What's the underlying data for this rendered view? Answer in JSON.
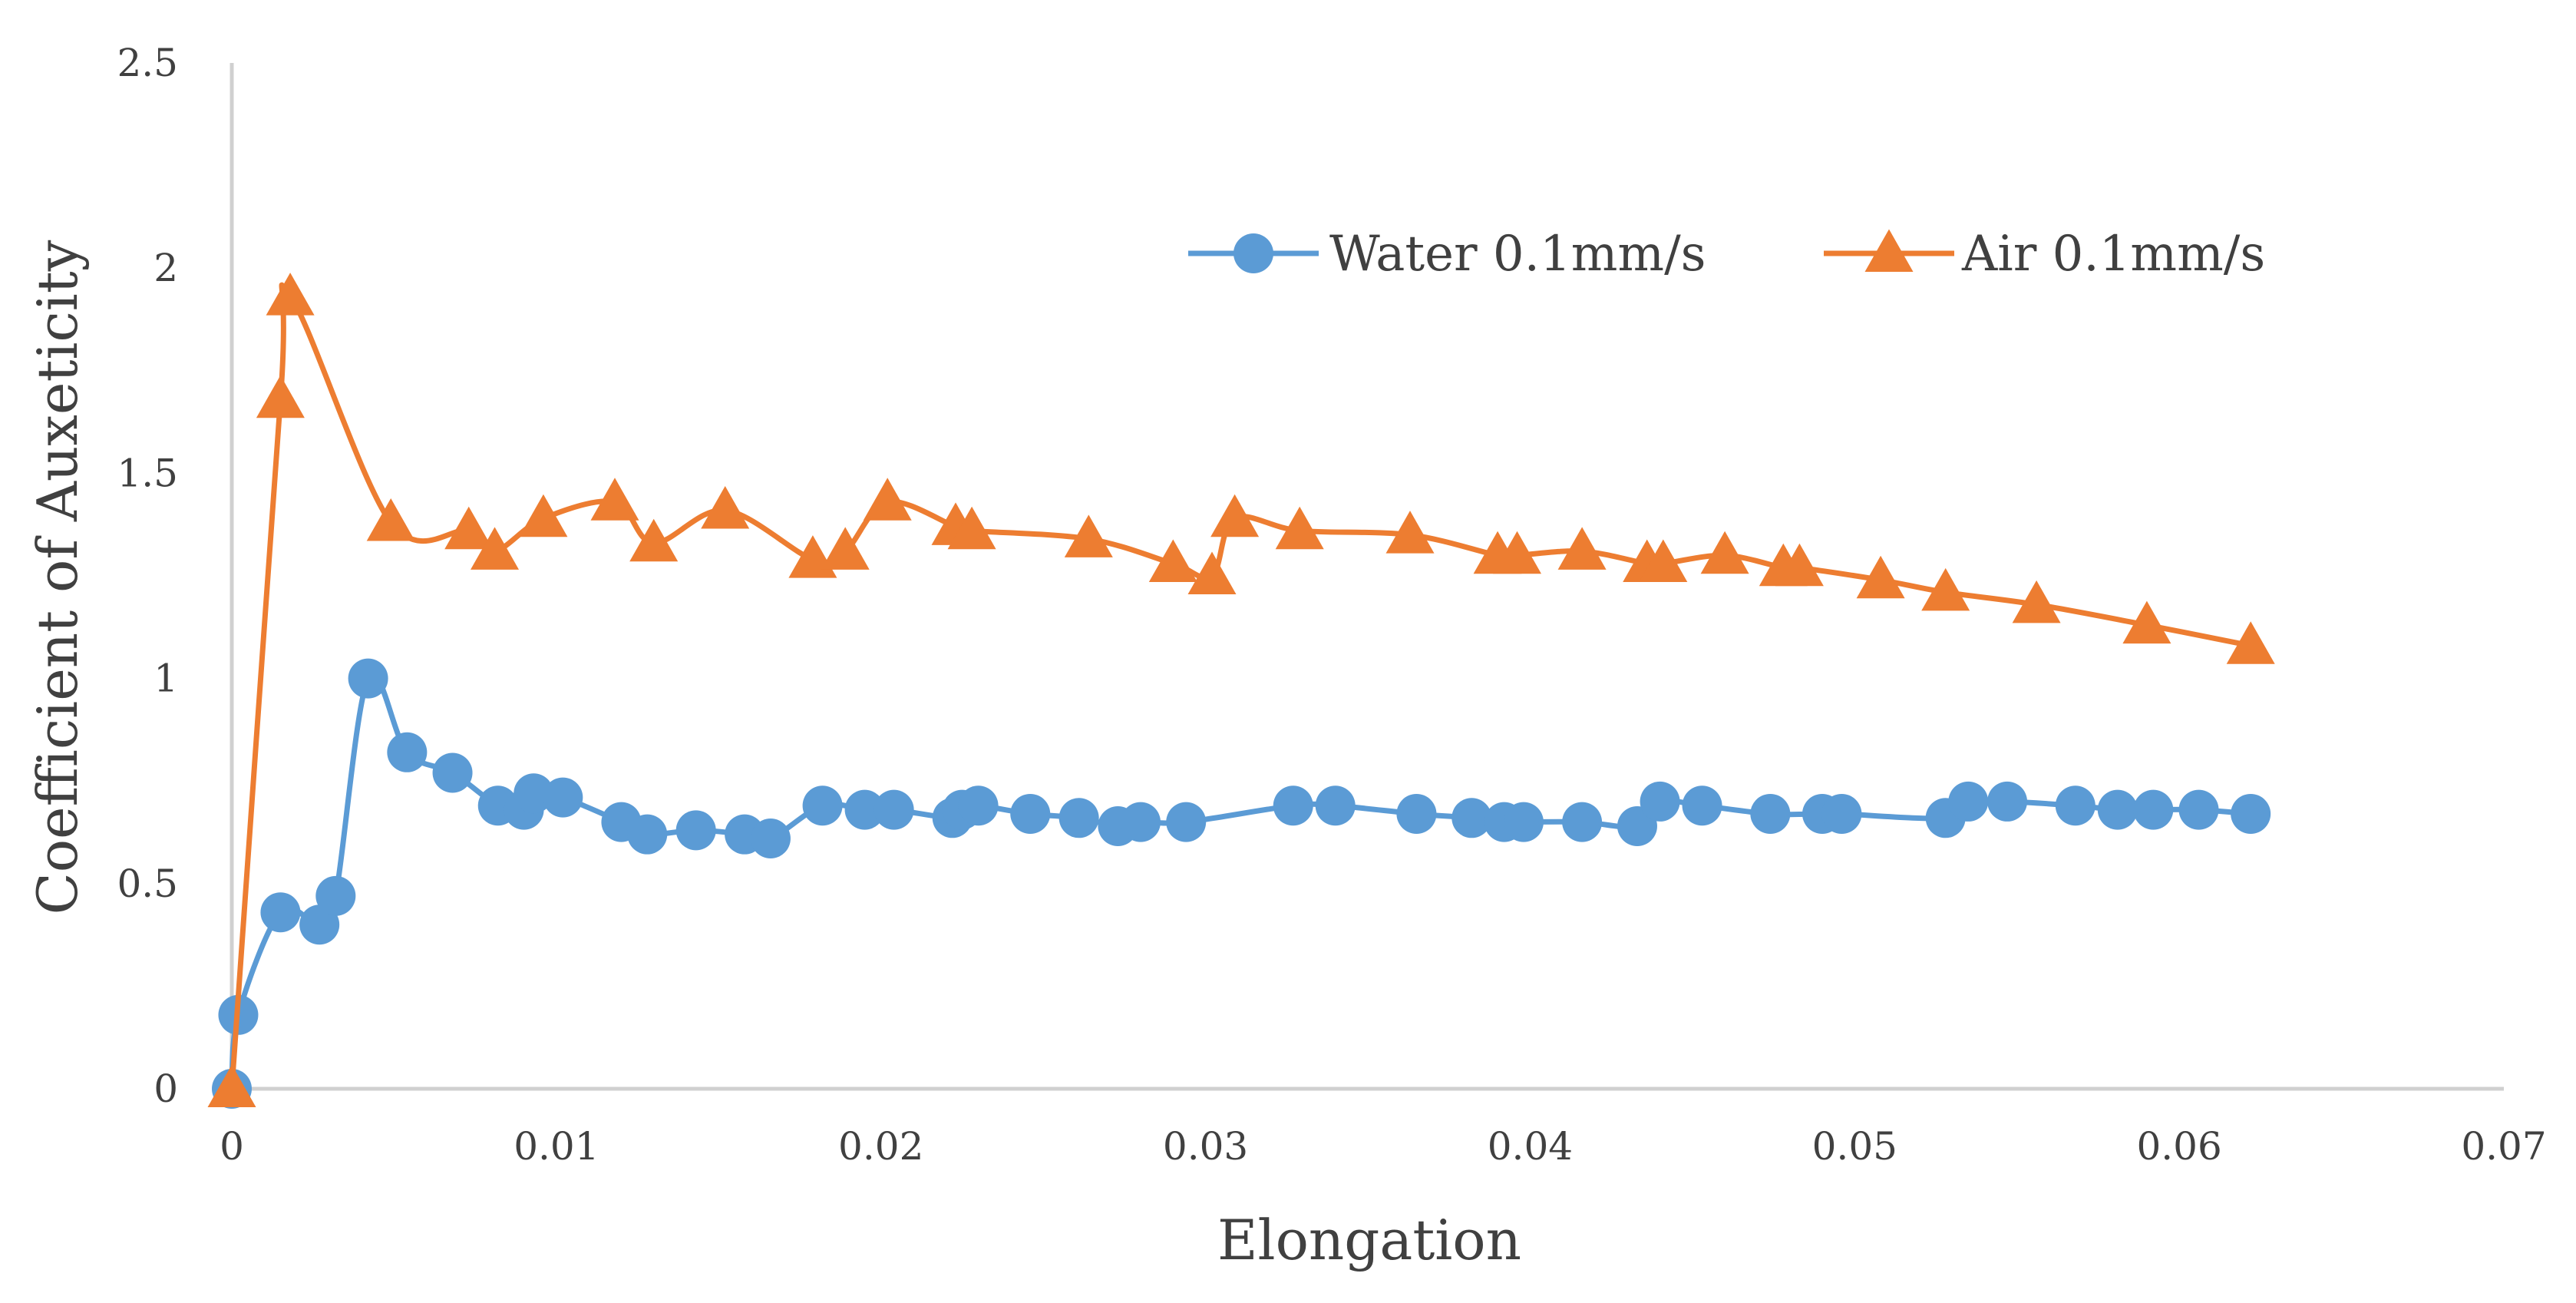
{
  "chart_data": {
    "type": "line",
    "title": "",
    "xlabel": "Elongation",
    "ylabel": "Coefficient of Auxeticity",
    "xlim": [
      0,
      0.07
    ],
    "ylim": [
      0,
      2.5
    ],
    "x_ticks": [
      0,
      0.01,
      0.02,
      0.03,
      0.04,
      0.05,
      0.06,
      0.07
    ],
    "x_tick_labels": [
      "0",
      "0.01",
      "0.02",
      "0.03",
      "0.04",
      "0.05",
      "0.06",
      "0.07"
    ],
    "y_ticks": [
      0,
      0.5,
      1,
      1.5,
      2,
      2.5
    ],
    "y_tick_labels": [
      "0",
      "0.5",
      "1",
      "1.5",
      "2",
      "2.5"
    ],
    "grid": false,
    "legend_position": "top-right",
    "series": [
      {
        "name": "Water 0.1mm/s",
        "color": "#5B9BD5",
        "marker": "circle",
        "points": [
          [
            0,
            0
          ],
          [
            0.0002,
            0.18
          ],
          [
            0.0015,
            0.43
          ],
          [
            0.0027,
            0.4
          ],
          [
            0.0032,
            0.47
          ],
          [
            0.0042,
            1.0
          ],
          [
            0.0054,
            0.82
          ],
          [
            0.0068,
            0.77
          ],
          [
            0.0082,
            0.69
          ],
          [
            0.009,
            0.68
          ],
          [
            0.0093,
            0.72
          ],
          [
            0.0102,
            0.71
          ],
          [
            0.012,
            0.65
          ],
          [
            0.0128,
            0.62
          ],
          [
            0.0143,
            0.63
          ],
          [
            0.0158,
            0.62
          ],
          [
            0.0166,
            0.61
          ],
          [
            0.0182,
            0.69
          ],
          [
            0.0195,
            0.68
          ],
          [
            0.0204,
            0.68
          ],
          [
            0.0222,
            0.66
          ],
          [
            0.0225,
            0.68
          ],
          [
            0.023,
            0.69
          ],
          [
            0.0246,
            0.67
          ],
          [
            0.0261,
            0.66
          ],
          [
            0.0273,
            0.64
          ],
          [
            0.028,
            0.65
          ],
          [
            0.0294,
            0.65
          ],
          [
            0.0327,
            0.69
          ],
          [
            0.034,
            0.69
          ],
          [
            0.0365,
            0.67
          ],
          [
            0.0382,
            0.66
          ],
          [
            0.0392,
            0.65
          ],
          [
            0.0398,
            0.65
          ],
          [
            0.0416,
            0.65
          ],
          [
            0.0433,
            0.64
          ],
          [
            0.044,
            0.7
          ],
          [
            0.0453,
            0.69
          ],
          [
            0.0474,
            0.67
          ],
          [
            0.049,
            0.67
          ],
          [
            0.0496,
            0.67
          ],
          [
            0.0528,
            0.66
          ],
          [
            0.0535,
            0.7
          ],
          [
            0.0547,
            0.7
          ],
          [
            0.0568,
            0.69
          ],
          [
            0.0581,
            0.68
          ],
          [
            0.0592,
            0.68
          ],
          [
            0.0606,
            0.68
          ],
          [
            0.0622,
            0.67
          ]
        ]
      },
      {
        "name": "Air 0.1mm/s",
        "color": "#ED7D31",
        "marker": "triangle",
        "points": [
          [
            0,
            0
          ],
          [
            0.0015,
            1.68
          ],
          [
            0.0018,
            1.93
          ],
          [
            0.0049,
            1.38
          ],
          [
            0.0073,
            1.36
          ],
          [
            0.0081,
            1.31
          ],
          [
            0.0096,
            1.39
          ],
          [
            0.0118,
            1.43
          ],
          [
            0.013,
            1.33
          ],
          [
            0.0152,
            1.41
          ],
          [
            0.0179,
            1.29
          ],
          [
            0.0189,
            1.31
          ],
          [
            0.0202,
            1.43
          ],
          [
            0.0223,
            1.37
          ],
          [
            0.0228,
            1.36
          ],
          [
            0.0264,
            1.34
          ],
          [
            0.029,
            1.28
          ],
          [
            0.0302,
            1.25
          ],
          [
            0.0309,
            1.39
          ],
          [
            0.0329,
            1.36
          ],
          [
            0.0363,
            1.35
          ],
          [
            0.039,
            1.3
          ],
          [
            0.0396,
            1.3
          ],
          [
            0.0416,
            1.31
          ],
          [
            0.0436,
            1.28
          ],
          [
            0.0441,
            1.28
          ],
          [
            0.046,
            1.3
          ],
          [
            0.0478,
            1.27
          ],
          [
            0.0483,
            1.27
          ],
          [
            0.0508,
            1.24
          ],
          [
            0.0528,
            1.21
          ],
          [
            0.0556,
            1.18
          ],
          [
            0.059,
            1.13
          ],
          [
            0.0622,
            1.08
          ]
        ]
      }
    ]
  }
}
